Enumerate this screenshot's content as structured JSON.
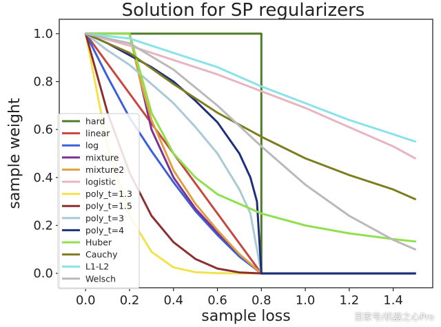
{
  "chart_data": {
    "type": "line",
    "title": "Solution for SP regularizers",
    "xlabel": "sample loss",
    "ylabel": "sample weight",
    "xlim": [
      -0.12,
      1.58
    ],
    "ylim": [
      -0.06,
      1.06
    ],
    "xticks": [
      "0.0",
      "0.2",
      "0.4",
      "0.6",
      "0.8",
      "1.0",
      "1.2",
      "1.4"
    ],
    "yticks": [
      "0.0",
      "0.2",
      "0.4",
      "0.6",
      "0.8",
      "1.0"
    ],
    "grid": false,
    "legend_position": "bottom-left",
    "series": [
      {
        "name": "hard",
        "color": "#4f7a28",
        "x": [
          0,
          0.8,
          0.8,
          0.8,
          1.5
        ],
        "y": [
          1,
          1,
          1,
          0,
          0
        ]
      },
      {
        "name": "linear",
        "color": "#c9463d",
        "x": [
          0,
          0.2,
          0.4,
          0.6,
          0.8,
          1.5
        ],
        "y": [
          1,
          0.75,
          0.5,
          0.25,
          0,
          0
        ]
      },
      {
        "name": "log",
        "color": "#3b5fd9",
        "x": [
          0,
          0.1,
          0.2,
          0.3,
          0.4,
          0.5,
          0.6,
          0.7,
          0.8,
          1.5
        ],
        "y": [
          1,
          0.82,
          0.65,
          0.51,
          0.38,
          0.26,
          0.16,
          0.07,
          0,
          0
        ]
      },
      {
        "name": "mixture",
        "color": "#7b3294",
        "x": [
          0,
          0.2,
          0.3,
          0.4,
          0.5,
          0.6,
          0.7,
          0.8,
          1.5
        ],
        "y": [
          1,
          1,
          0.6,
          0.4,
          0.27,
          0.17,
          0.08,
          0,
          0
        ]
      },
      {
        "name": "mixture2",
        "color": "#e0a040",
        "x": [
          0,
          0.2,
          0.25,
          0.3,
          0.4,
          0.5,
          0.6,
          0.7,
          0.8,
          1.5
        ],
        "y": [
          1,
          1,
          0.8,
          0.64,
          0.43,
          0.29,
          0.18,
          0.08,
          0,
          0
        ]
      },
      {
        "name": "logistic",
        "color": "#e8b4c0",
        "x": [
          0,
          0.2,
          0.4,
          0.6,
          0.8,
          1.0,
          1.2,
          1.4,
          1.5
        ],
        "y": [
          1,
          0.95,
          0.89,
          0.83,
          0.76,
          0.69,
          0.61,
          0.53,
          0.48
        ]
      },
      {
        "name": "poly_t=1.3",
        "color": "#f2e24c",
        "x": [
          0,
          0.1,
          0.2,
          0.3,
          0.4,
          0.5,
          0.6,
          0.7,
          0.8,
          1.5
        ],
        "y": [
          1,
          0.53,
          0.24,
          0.09,
          0.025,
          0.005,
          0.001,
          0,
          0,
          0
        ]
      },
      {
        "name": "poly_t=1.5",
        "color": "#8b2e2e",
        "x": [
          0,
          0.1,
          0.2,
          0.3,
          0.4,
          0.5,
          0.6,
          0.7,
          0.8,
          1.5
        ],
        "y": [
          1,
          0.67,
          0.42,
          0.24,
          0.13,
          0.06,
          0.02,
          0.004,
          0,
          0
        ]
      },
      {
        "name": "poly_t=3",
        "color": "#a9c9d6",
        "x": [
          0,
          0.1,
          0.2,
          0.3,
          0.4,
          0.5,
          0.6,
          0.7,
          0.75,
          0.8,
          1.5
        ],
        "y": [
          1,
          0.93,
          0.87,
          0.79,
          0.71,
          0.61,
          0.5,
          0.35,
          0.25,
          0,
          0
        ]
      },
      {
        "name": "poly_t=4",
        "color": "#1e2f7a",
        "x": [
          0,
          0.1,
          0.2,
          0.3,
          0.4,
          0.5,
          0.6,
          0.7,
          0.75,
          0.78,
          0.8,
          1.5
        ],
        "y": [
          1,
          0.96,
          0.91,
          0.86,
          0.8,
          0.72,
          0.63,
          0.5,
          0.4,
          0.3,
          0,
          0
        ]
      },
      {
        "name": "Huber",
        "color": "#8ee04c",
        "x": [
          0,
          0.2,
          0.3,
          0.4,
          0.5,
          0.6,
          0.7,
          0.8,
          1.0,
          1.2,
          1.4,
          1.5
        ],
        "y": [
          1,
          1,
          0.67,
          0.5,
          0.4,
          0.33,
          0.29,
          0.25,
          0.2,
          0.167,
          0.143,
          0.133
        ]
      },
      {
        "name": "Cauchy",
        "color": "#7d7d20",
        "x": [
          0,
          0.2,
          0.4,
          0.6,
          0.8,
          1.0,
          1.2,
          1.4,
          1.5
        ],
        "y": [
          1,
          0.92,
          0.79,
          0.67,
          0.57,
          0.48,
          0.41,
          0.35,
          0.31
        ]
      },
      {
        "name": "L1-L2",
        "color": "#88e2ea",
        "x": [
          0,
          0.2,
          0.4,
          0.6,
          0.8,
          1.0,
          1.2,
          1.4,
          1.5
        ],
        "y": [
          1,
          0.98,
          0.92,
          0.86,
          0.78,
          0.71,
          0.64,
          0.58,
          0.55
        ]
      },
      {
        "name": "Welsch",
        "color": "#b9b9b9",
        "x": [
          0,
          0.2,
          0.4,
          0.6,
          0.8,
          1.0,
          1.2,
          1.4,
          1.5
        ],
        "y": [
          1,
          0.96,
          0.85,
          0.7,
          0.53,
          0.37,
          0.24,
          0.14,
          0.1
        ]
      }
    ]
  },
  "watermark": "百家号/机器之心Pro"
}
